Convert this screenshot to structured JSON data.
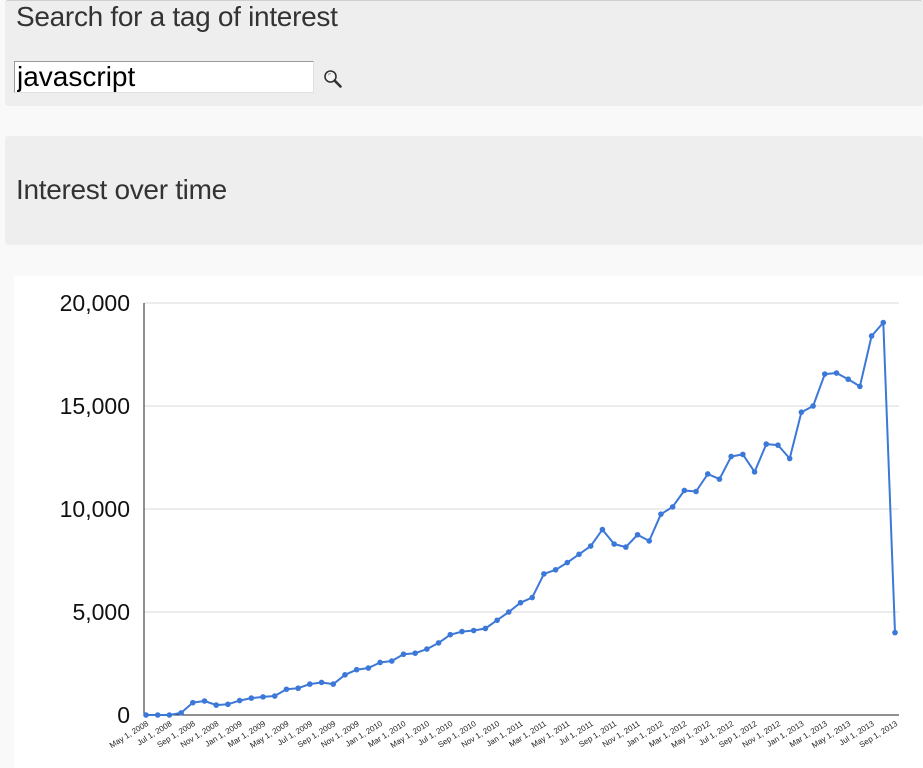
{
  "search": {
    "title": "Search for a tag of interest",
    "value": "javascript",
    "button_icon": "magnifier-icon"
  },
  "interest": {
    "title": "Interest over time"
  },
  "colors": {
    "line": "#3c78d8",
    "gridline": "#d9d9d9",
    "axis": "#222222"
  },
  "chart_data": {
    "type": "line",
    "title": "",
    "xlabel": "",
    "ylabel": "",
    "ylim": [
      0,
      20000
    ],
    "yticks": [
      0,
      5000,
      10000,
      15000,
      20000
    ],
    "ytick_labels": [
      "0",
      "5,000",
      "10,000",
      "15,000",
      "20,000"
    ],
    "grid": true,
    "legend": "none",
    "xtick_labels": [
      "May 1, 2008",
      "Jul 1, 2008",
      "Sep 1, 2008",
      "Nov 1, 2008",
      "Jan 1, 2009",
      "Mar 1, 2009",
      "May 1, 2009",
      "Jul 1, 2009",
      "Sep 1, 2009",
      "Nov 1, 2009",
      "Jan 1, 2010",
      "Mar 1, 2010",
      "May 1, 2010",
      "Jul 1, 2010",
      "Sep 1, 2010",
      "Nov 1, 2010",
      "Jan 1, 2011",
      "Mar 1, 2011",
      "May 1, 2011",
      "Jul 1, 2011",
      "Sep 1, 2011",
      "Nov 1, 2011",
      "Jan 1, 2012",
      "Mar 1, 2012",
      "May 1, 2012",
      "Jul 1, 2012",
      "Sep 1, 2012",
      "Nov 1, 2012",
      "Jan 1, 2013",
      "Mar 1, 2013",
      "May 1, 2013",
      "Jul 1, 2013",
      "Sep 1, 2013"
    ],
    "x": [
      "2008-05",
      "2008-06",
      "2008-07",
      "2008-08",
      "2008-09",
      "2008-10",
      "2008-11",
      "2008-12",
      "2009-01",
      "2009-02",
      "2009-03",
      "2009-04",
      "2009-05",
      "2009-06",
      "2009-07",
      "2009-08",
      "2009-09",
      "2009-10",
      "2009-11",
      "2009-12",
      "2010-01",
      "2010-02",
      "2010-03",
      "2010-04",
      "2010-05",
      "2010-06",
      "2010-07",
      "2010-08",
      "2010-09",
      "2010-10",
      "2010-11",
      "2010-12",
      "2011-01",
      "2011-02",
      "2011-03",
      "2011-04",
      "2011-05",
      "2011-06",
      "2011-07",
      "2011-08",
      "2011-09",
      "2011-10",
      "2011-11",
      "2011-12",
      "2012-01",
      "2012-02",
      "2012-03",
      "2012-04",
      "2012-05",
      "2012-06",
      "2012-07",
      "2012-08",
      "2012-09",
      "2012-10",
      "2012-11",
      "2012-12",
      "2013-01",
      "2013-02",
      "2013-03",
      "2013-04",
      "2013-05",
      "2013-06",
      "2013-07",
      "2013-08",
      "2013-09"
    ],
    "series": [
      {
        "values": [
          0,
          0,
          0,
          100,
          600,
          680,
          480,
          520,
          700,
          820,
          880,
          920,
          1250,
          1300,
          1500,
          1580,
          1500,
          1950,
          2200,
          2280,
          2550,
          2620,
          2950,
          3000,
          3200,
          3500,
          3900,
          4050,
          4100,
          4200,
          4600,
          5000,
          5450,
          5700,
          6850,
          7050,
          7400,
          7800,
          8200,
          9000,
          8300,
          8150,
          8750,
          8450,
          9750,
          10100,
          10900,
          10850,
          11700,
          11450,
          12550,
          12650,
          11800,
          13150,
          13100,
          12450,
          14700,
          15000,
          16550,
          16600,
          16300,
          15950,
          18400,
          19050,
          4000
        ]
      }
    ]
  }
}
